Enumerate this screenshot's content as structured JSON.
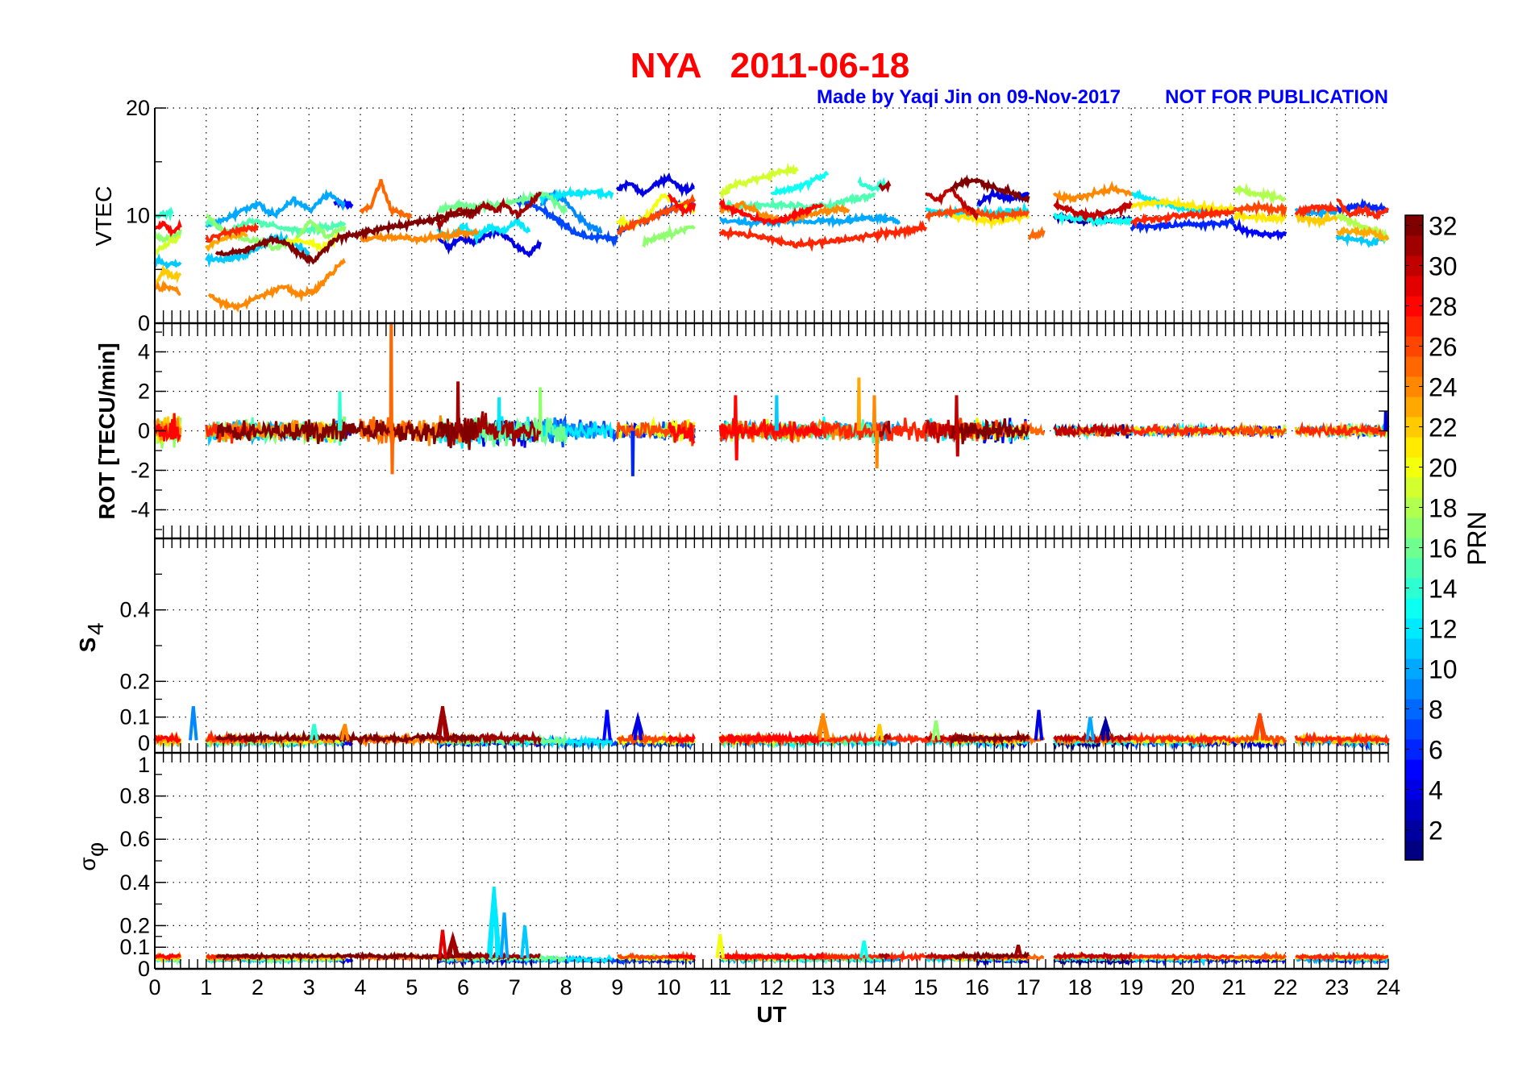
{
  "chart_data": {
    "type": "line",
    "title": "NYA   2011-06-18",
    "subtitle_left": "Made by Yaqi Jin on 09-Nov-2017",
    "subtitle_right": "NOT FOR PUBLICATION",
    "xlabel": "UT",
    "xlim": [
      0,
      24
    ],
    "xticks": [
      "0",
      "1",
      "2",
      "3",
      "4",
      "5",
      "6",
      "7",
      "8",
      "9",
      "10",
      "11",
      "12",
      "13",
      "14",
      "15",
      "16",
      "17",
      "18",
      "19",
      "20",
      "21",
      "22",
      "23",
      "24"
    ],
    "grid": true,
    "colorbar": {
      "label": "PRN",
      "range": [
        1,
        32
      ],
      "colormap": "jet",
      "ticks": [
        "2",
        "4",
        "6",
        "8",
        "10",
        "12",
        "14",
        "16",
        "18",
        "20",
        "22",
        "24",
        "26",
        "28",
        "30",
        "32"
      ],
      "placement": "right"
    },
    "panels": [
      {
        "id": "vtec",
        "ylabel": "VTEC",
        "ylim": [
          0,
          20
        ],
        "yticks": [
          {
            "v": 0,
            "l": "0"
          },
          {
            "v": 10,
            "l": "10"
          },
          {
            "v": 20,
            "l": "20"
          }
        ],
        "minor": [
          5,
          15
        ]
      },
      {
        "id": "rot",
        "ylabel": "ROT [TECU/min]",
        "ylim": [
          -5.45,
          5.45
        ],
        "yticks": [
          {
            "v": -4,
            "l": "-4"
          },
          {
            "v": -2,
            "l": "-2"
          },
          {
            "v": 0,
            "l": "0"
          },
          {
            "v": 2,
            "l": "2"
          },
          {
            "v": 4,
            "l": "4"
          }
        ],
        "minor": [
          -5,
          -3,
          -1,
          1,
          3,
          5
        ]
      },
      {
        "id": "s4",
        "ylabel": "S",
        "ylabel_sub": "4",
        "ylim": [
          0,
          0.6
        ],
        "yticks": [
          {
            "v": 0,
            "l": "0"
          },
          {
            "v": 0.1,
            "l": "0.1"
          },
          {
            "v": 0.2,
            "l": "0.2"
          },
          {
            "v": 0.4,
            "l": "0.4"
          }
        ],
        "minor": [
          0.15,
          0.3,
          0.5
        ]
      },
      {
        "id": "sigphi",
        "ylabel": "σ",
        "ylabel_sub": "φ",
        "ylim": [
          0,
          1
        ],
        "yticks": [
          {
            "v": 0,
            "l": "0"
          },
          {
            "v": 0.1,
            "l": "0.1"
          },
          {
            "v": 0.2,
            "l": "0.2"
          },
          {
            "v": 0.4,
            "l": "0.4"
          },
          {
            "v": 0.6,
            "l": "0.6"
          },
          {
            "v": 0.8,
            "l": "0.8"
          },
          {
            "v": 1,
            "l": "1"
          }
        ],
        "minor": [
          0.15,
          0.3,
          0.5,
          0.7,
          0.9
        ]
      }
    ],
    "vtec_series": [
      {
        "prn": 28,
        "t": [
          0,
          0.5
        ],
        "v": [
          8.8,
          9.2,
          8.5,
          9.0
        ]
      },
      {
        "prn": 22,
        "t": [
          0,
          0.5
        ],
        "v": [
          3.5,
          5.0,
          4.2,
          4.5
        ]
      },
      {
        "prn": 24,
        "t": [
          0,
          0.5
        ],
        "v": [
          3.3,
          3.3,
          3.0
        ]
      },
      {
        "prn": 11,
        "t": [
          0,
          0.5
        ],
        "v": [
          5.8,
          5.5,
          5.5
        ]
      },
      {
        "prn": 19,
        "t": [
          0,
          0.5
        ],
        "v": [
          6.5,
          7.5,
          8.0
        ]
      },
      {
        "prn": 14,
        "t": [
          0,
          0.35
        ],
        "v": [
          10,
          10.2
        ]
      },
      {
        "prn": 17,
        "t": [
          0,
          0.5
        ],
        "v": [
          8.0,
          7.8,
          8.5
        ]
      },
      {
        "prn": 24,
        "t": [
          1.05,
          3.7
        ],
        "v": [
          2.6,
          1.8,
          1.5,
          2.3,
          2.8,
          3.5,
          2.6,
          3.0,
          4.5,
          5.9
        ]
      },
      {
        "prn": 32,
        "t": [
          1.2,
          3.6
        ],
        "v": [
          6.5,
          6.5,
          6.8,
          7.2,
          7.8,
          7.5,
          6.5,
          5.7,
          7.0,
          8.0
        ]
      },
      {
        "prn": 11,
        "t": [
          1.0,
          3.0
        ],
        "v": [
          6.0,
          5.9,
          6.2,
          7.0,
          8.0,
          7.5,
          6.5
        ]
      },
      {
        "prn": 10,
        "t": [
          1.0,
          3.7
        ],
        "v": [
          9.0,
          9.5,
          10.5,
          11,
          10,
          11.5,
          10.5,
          12,
          11
        ]
      },
      {
        "prn": 15,
        "t": [
          1.0,
          3.7
        ],
        "v": [
          9.5,
          8.5,
          9.5,
          9.0,
          8.5,
          8.8,
          9.2
        ]
      },
      {
        "prn": 27,
        "t": [
          1.0,
          2.0
        ],
        "v": [
          7.8,
          8.5,
          9.0
        ]
      },
      {
        "prn": 23,
        "t": [
          1.0,
          1.8
        ],
        "v": [
          7.0,
          8.0,
          8.3
        ]
      },
      {
        "prn": 17,
        "t": [
          1.0,
          3.7
        ],
        "v": [
          10,
          8.5,
          8.0,
          7.5,
          7.0,
          7.5,
          9.5,
          8,
          9
        ]
      },
      {
        "prn": 20,
        "t": [
          2.5,
          3.6
        ],
        "v": [
          7.5,
          7.8,
          7.0,
          8.2
        ]
      },
      {
        "prn": 5,
        "t": [
          3.5,
          3.85
        ],
        "v": [
          11.2,
          11.0
        ]
      },
      {
        "prn": 25,
        "t": [
          4.0,
          5.0
        ],
        "v": [
          10.5,
          10.8,
          13.2,
          10.5,
          10.2,
          10.0
        ]
      },
      {
        "prn": 32,
        "t": [
          3.6,
          6.3
        ],
        "v": [
          8,
          8.5,
          9,
          9.5,
          10,
          10.5
        ]
      },
      {
        "prn": 31,
        "t": [
          5.5,
          7.5
        ],
        "v": [
          9,
          10,
          10.5,
          10.0,
          11,
          10.5,
          11,
          10,
          11,
          12
        ]
      },
      {
        "prn": 24,
        "t": [
          4.0,
          6.3
        ],
        "v": [
          7.8,
          8.0,
          7.8,
          8.2,
          8.5
        ]
      },
      {
        "prn": 4,
        "t": [
          5.5,
          7.5
        ],
        "v": [
          8,
          7,
          8,
          7.5,
          8,
          8.5,
          8,
          7.0,
          6.5,
          7.5
        ]
      },
      {
        "prn": 12,
        "t": [
          5.5,
          7.3
        ],
        "v": [
          8.5,
          8,
          9,
          8,
          9,
          8.5,
          9.5,
          8.5
        ]
      },
      {
        "prn": 16,
        "t": [
          5.5,
          8.0
        ],
        "v": [
          10.5,
          11,
          10.8,
          11,
          11.5,
          12,
          10.5
        ]
      },
      {
        "prn": 7,
        "t": [
          7.0,
          9.0
        ],
        "v": [
          11.5,
          11,
          10.5,
          9.5,
          8.5,
          8.0,
          8.0,
          7.8
        ]
      },
      {
        "prn": 9,
        "t": [
          7.5,
          8.7
        ],
        "v": [
          11,
          12,
          11.5,
          10,
          9,
          8.5
        ]
      },
      {
        "prn": 12,
        "t": [
          7.5,
          8.9
        ],
        "v": [
          11.5,
          12,
          12.2,
          12.0
        ]
      },
      {
        "prn": 4,
        "t": [
          9.0,
          10.5
        ],
        "v": [
          12.5,
          13,
          12.0,
          13,
          13.5,
          12.5,
          12.5
        ]
      },
      {
        "prn": 7,
        "t": [
          9.0,
          10.5
        ],
        "v": [
          8.5,
          9,
          9.5,
          10,
          10.5,
          11,
          11
        ]
      },
      {
        "prn": 26,
        "t": [
          9.0,
          10.5
        ],
        "v": [
          8.5,
          9,
          9.5,
          10,
          10.5,
          11,
          11.5
        ]
      },
      {
        "prn": 20,
        "t": [
          9.0,
          10.5
        ],
        "v": [
          9.5,
          9,
          10,
          12,
          11,
          10.5
        ]
      },
      {
        "prn": 28,
        "t": [
          10.0,
          10.5
        ],
        "v": [
          12,
          11,
          10.5,
          11
        ]
      },
      {
        "prn": 17,
        "t": [
          9.5,
          10.5
        ],
        "v": [
          7.5,
          8,
          8.5,
          9
        ]
      },
      {
        "prn": 19,
        "t": [
          11.0,
          12.5
        ],
        "v": [
          12,
          13,
          13.5,
          14,
          14.2
        ]
      },
      {
        "prn": 13,
        "t": [
          12.0,
          13.1
        ],
        "v": [
          12,
          12.5,
          13,
          14
        ]
      },
      {
        "prn": 27,
        "t": [
          11.0,
          15.0
        ],
        "v": [
          8.5,
          8.3,
          7.8,
          7.3,
          7.5,
          7.8,
          8.2,
          8.5,
          9.0
        ]
      },
      {
        "prn": 28,
        "t": [
          11.0,
          13.0
        ],
        "v": [
          11,
          10.5,
          10,
          9.5,
          9.5,
          10,
          10.5,
          11
        ]
      },
      {
        "prn": 24,
        "t": [
          11.0,
          13.5
        ],
        "v": [
          10.5,
          11,
          10,
          9.5,
          10,
          10.5,
          10.5
        ]
      },
      {
        "prn": 10,
        "t": [
          11.0,
          14.5
        ],
        "v": [
          9.5,
          9.3,
          9.5,
          9.5,
          9.5,
          9.8,
          9.5
        ]
      },
      {
        "prn": 15,
        "t": [
          11.0,
          14.0
        ],
        "v": [
          11,
          10.8,
          11,
          11,
          10.8,
          11,
          11.5,
          12
        ]
      },
      {
        "prn": 14,
        "t": [
          13.7,
          14.2
        ],
        "v": [
          13,
          12.5,
          13
        ]
      },
      {
        "prn": 31,
        "t": [
          14.1,
          14.3
        ],
        "v": [
          12.5,
          12.8
        ]
      },
      {
        "prn": 32,
        "t": [
          15.5,
          17.0
        ],
        "v": [
          12.5,
          13.2,
          13,
          12.5,
          12,
          11.5
        ]
      },
      {
        "prn": 30,
        "t": [
          15.0,
          16.0
        ],
        "v": [
          12,
          11.5,
          12.5,
          11,
          10
        ]
      },
      {
        "prn": 4,
        "t": [
          16.0,
          17.0
        ],
        "v": [
          11,
          12,
          11.5,
          12.0
        ]
      },
      {
        "prn": 21,
        "t": [
          15.5,
          17.0
        ],
        "v": [
          10,
          9.8,
          9.5,
          9.7,
          10
        ]
      },
      {
        "prn": 26,
        "t": [
          15.0,
          17.0
        ],
        "v": [
          10,
          10.5,
          10,
          10.2
        ]
      },
      {
        "prn": 12,
        "t": [
          15.0,
          17.0
        ],
        "v": [
          10.5,
          10.2,
          10.3,
          10.5
        ]
      },
      {
        "prn": 30,
        "t": [
          17.5,
          19.0
        ],
        "v": [
          11,
          10.5,
          10,
          10.2,
          10.5,
          11
        ]
      },
      {
        "prn": 24,
        "t": [
          17.5,
          19.0
        ],
        "v": [
          12,
          11.5,
          12,
          12.5,
          12
        ]
      },
      {
        "prn": 2,
        "t": [
          17.5,
          19.0
        ],
        "v": [
          10,
          9.5,
          9.5,
          9.7
        ]
      },
      {
        "prn": 13,
        "t": [
          17.5,
          19.0
        ],
        "v": [
          10,
          9.5,
          9.6
        ]
      },
      {
        "prn": 25,
        "t": [
          17.0,
          17.3
        ],
        "v": [
          8,
          8.5
        ]
      },
      {
        "prn": 12,
        "t": [
          19.0,
          20.5
        ],
        "v": [
          12,
          11.5,
          11,
          10.5,
          10.5
        ]
      },
      {
        "prn": 27,
        "t": [
          19.0,
          21.0
        ],
        "v": [
          9.5,
          9.7,
          10,
          10.2,
          10.3
        ]
      },
      {
        "prn": 6,
        "t": [
          19.0,
          21.0
        ],
        "v": [
          9,
          9,
          9.2,
          9.1,
          9.5
        ]
      },
      {
        "prn": 21,
        "t": [
          19.0,
          21.0
        ],
        "v": [
          11,
          11.2,
          10.8,
          10.5
        ]
      },
      {
        "prn": 5,
        "t": [
          21.0,
          22.0
        ],
        "v": [
          9,
          8.5,
          8.2,
          8.3
        ]
      },
      {
        "prn": 26,
        "t": [
          21.0,
          22.0
        ],
        "v": [
          10.5,
          10.8,
          10.5
        ]
      },
      {
        "prn": 18,
        "t": [
          21.0,
          22.0
        ],
        "v": [
          12.5,
          12,
          11.5
        ]
      },
      {
        "prn": 21,
        "t": [
          21.0,
          22.0
        ],
        "v": [
          10,
          9.8,
          9.8
        ]
      },
      {
        "prn": 10,
        "t": [
          22.2,
          23.0
        ],
        "v": [
          10.5,
          10.2,
          10.4
        ]
      },
      {
        "prn": 22,
        "t": [
          22.2,
          23.0
        ],
        "v": [
          9.8,
          9.5,
          9.8
        ]
      },
      {
        "prn": 27,
        "t": [
          22.2,
          23.0
        ],
        "v": [
          10.2,
          10.8,
          10.6
        ]
      },
      {
        "prn": 27,
        "t": [
          23.0,
          24.0
        ],
        "v": [
          11.5,
          10,
          10.5,
          10,
          10.5
        ]
      },
      {
        "prn": 11,
        "t": [
          23.0,
          24.0
        ],
        "v": [
          8,
          7.8,
          7.5,
          8
        ]
      },
      {
        "prn": 23,
        "t": [
          23.0,
          24.0
        ],
        "v": [
          8.5,
          8.5,
          8.5,
          7.8
        ]
      },
      {
        "prn": 6,
        "t": [
          23.0,
          24.0
        ],
        "v": [
          10.5,
          11,
          10.5
        ]
      },
      {
        "prn": 18,
        "t": [
          23.0,
          24.0
        ],
        "v": [
          10,
          9,
          8
        ]
      }
    ],
    "rot_noise_amplitude_by_hour": [
      0.5,
      0.35,
      0.35,
      0.4,
      0.45,
      0.5,
      0.5,
      0.45,
      0.3,
      0.3,
      0.35,
      0.35,
      0.3,
      0.35,
      0.35,
      0.4,
      0.35,
      0.2,
      0.2,
      0.18,
      0.18,
      0.18,
      0.18,
      0.18
    ],
    "rot_spikes": [
      {
        "prn": 25,
        "t": 4.6,
        "v": 5.5
      },
      {
        "prn": 25,
        "t": 4.62,
        "v": -2.2
      },
      {
        "prn": 31,
        "t": 5.9,
        "v": 2.5
      },
      {
        "prn": 17,
        "t": 7.5,
        "v": 2.2
      },
      {
        "prn": 14,
        "t": 3.6,
        "v": 2.0
      },
      {
        "prn": 12,
        "t": 6.7,
        "v": 1.7
      },
      {
        "prn": 6,
        "t": 9.3,
        "v": -2.3
      },
      {
        "prn": 28,
        "t": 11.3,
        "v": 1.8
      },
      {
        "prn": 28,
        "t": 11.32,
        "v": -1.5
      },
      {
        "prn": 11,
        "t": 12.1,
        "v": 1.8
      },
      {
        "prn": 23,
        "t": 13.7,
        "v": 2.7
      },
      {
        "prn": 24,
        "t": 14.0,
        "v": 1.8
      },
      {
        "prn": 24,
        "t": 14.05,
        "v": -1.9
      },
      {
        "prn": 30,
        "t": 15.6,
        "v": 1.8
      },
      {
        "prn": 30,
        "t": 15.62,
        "v": -1.3
      },
      {
        "prn": 4,
        "t": 23.95,
        "v": 1.0
      }
    ],
    "s4_baseline": 0.035,
    "s4_spikes": [
      {
        "prn": 9,
        "t": 0.75,
        "v": 0.13
      },
      {
        "prn": 31,
        "t": 5.6,
        "v": 0.13
      },
      {
        "prn": 5,
        "t": 8.8,
        "v": 0.12
      },
      {
        "prn": 4,
        "t": 9.4,
        "v": 0.1
      },
      {
        "prn": 24,
        "t": 13.0,
        "v": 0.11
      },
      {
        "prn": 4,
        "t": 17.2,
        "v": 0.12
      },
      {
        "prn": 10,
        "t": 18.2,
        "v": 0.1
      },
      {
        "prn": 2,
        "t": 18.5,
        "v": 0.09
      },
      {
        "prn": 26,
        "t": 21.5,
        "v": 0.11
      },
      {
        "prn": 17,
        "t": 15.2,
        "v": 0.09
      },
      {
        "prn": 22,
        "t": 14.1,
        "v": 0.08
      },
      {
        "prn": 14,
        "t": 3.1,
        "v": 0.08
      },
      {
        "prn": 24,
        "t": 3.7,
        "v": 0.08
      }
    ],
    "sigphi_baseline": 0.05,
    "sigphi_spikes": [
      {
        "prn": 12,
        "t": 6.6,
        "v": 0.38
      },
      {
        "prn": 10,
        "t": 6.8,
        "v": 0.26
      },
      {
        "prn": 11,
        "t": 7.2,
        "v": 0.2
      },
      {
        "prn": 29,
        "t": 5.6,
        "v": 0.18
      },
      {
        "prn": 31,
        "t": 5.8,
        "v": 0.15
      },
      {
        "prn": 20,
        "t": 11.0,
        "v": 0.16
      },
      {
        "prn": 13,
        "t": 13.8,
        "v": 0.13
      },
      {
        "prn": 31,
        "t": 16.8,
        "v": 0.11
      }
    ]
  }
}
